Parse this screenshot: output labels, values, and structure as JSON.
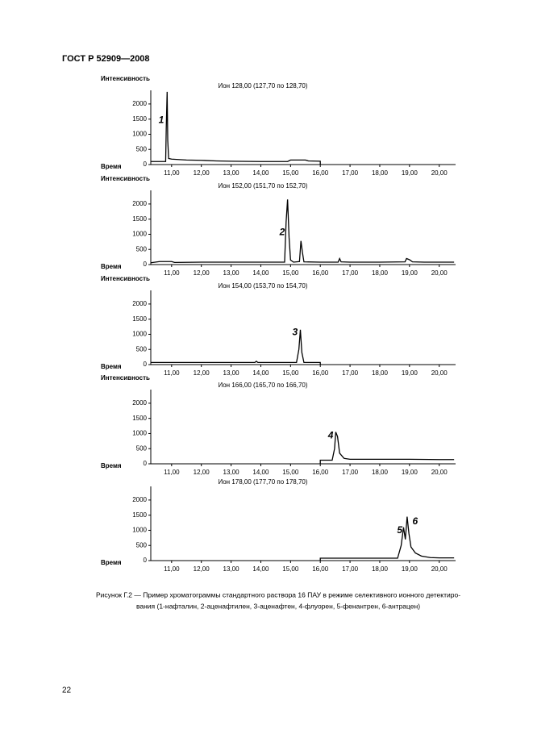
{
  "header": "ГОСТ Р 52909—2008",
  "chart_data": [
    {
      "type": "line",
      "title": "Ион 128,00 (127,70 по 128,70)",
      "y_label": "Интенсивность",
      "x_label": "Время",
      "xlim": [
        10.3,
        20.55
      ],
      "ylim": [
        0,
        2450
      ],
      "xticks": [
        {
          "value": 11,
          "label": "11,00"
        },
        {
          "value": 12,
          "label": "12,00"
        },
        {
          "value": 13,
          "label": "13,00"
        },
        {
          "value": 14,
          "label": "14,00"
        },
        {
          "value": 15,
          "label": "15,00"
        },
        {
          "value": 16,
          "label": "16,00"
        },
        {
          "value": 17,
          "label": "17,00"
        },
        {
          "value": 18,
          "label": "18,00"
        },
        {
          "value": 19,
          "label": "19,00"
        },
        {
          "value": 20,
          "label": "20,00"
        }
      ],
      "yticks": [
        0,
        500,
        1000,
        1500,
        2000
      ],
      "color": "#000000",
      "x": [
        10.3,
        10.8,
        10.82,
        10.85,
        10.87,
        10.9,
        11.0,
        11.5,
        12.0,
        12.5,
        13.0,
        14.0,
        14.9,
        15.0,
        15.5,
        15.6,
        16.0,
        16.0
      ],
      "values": [
        100,
        100,
        1200,
        2400,
        800,
        200,
        180,
        150,
        140,
        120,
        110,
        100,
        100,
        150,
        150,
        120,
        110,
        0
      ],
      "annotations": [
        {
          "text": "1",
          "x": 10.65,
          "y": 1450
        }
      ]
    },
    {
      "type": "line",
      "title": "Ион 152,00 (151,70 по 152,70)",
      "y_label": "Интенсивность",
      "x_label": "Время",
      "xlim": [
        10.3,
        20.55
      ],
      "ylim": [
        0,
        2450
      ],
      "xticks": [
        {
          "value": 11,
          "label": "11,00"
        },
        {
          "value": 12,
          "label": "12,00"
        },
        {
          "value": 13,
          "label": "13,00"
        },
        {
          "value": 14,
          "label": "14,00"
        },
        {
          "value": 15,
          "label": "15,00"
        },
        {
          "value": 16,
          "label": "16,00"
        },
        {
          "value": 17,
          "label": "17,00"
        },
        {
          "value": 18,
          "label": "18,00"
        },
        {
          "value": 19,
          "label": "19,00"
        },
        {
          "value": 20,
          "label": "20,00"
        }
      ],
      "yticks": [
        0,
        500,
        1000,
        1500,
        2000
      ],
      "color": "#000000",
      "x": [
        10.3,
        10.6,
        11.0,
        11.1,
        12,
        13,
        14,
        14.8,
        14.85,
        14.9,
        14.95,
        15.0,
        15.1,
        15.3,
        15.35,
        15.4,
        15.45,
        16,
        16.6,
        16.65,
        16.7,
        17,
        18,
        18.85,
        18.9,
        19.0,
        19.1,
        19.5,
        20.5
      ],
      "values": [
        60,
        100,
        100,
        70,
        80,
        80,
        80,
        80,
        1400,
        2150,
        900,
        150,
        80,
        100,
        780,
        400,
        90,
        80,
        80,
        200,
        90,
        80,
        80,
        90,
        200,
        160,
        90,
        80,
        80
      ],
      "annotations": [
        {
          "text": "2",
          "x": 14.72,
          "y": 1050
        }
      ]
    },
    {
      "type": "line",
      "title": "Ион 154,00 (153,70 по 154,70)",
      "y_label": "Интенсивность",
      "x_label": "Время",
      "xlim": [
        10.3,
        20.55
      ],
      "ylim": [
        0,
        2450
      ],
      "xticks": [
        {
          "value": 11,
          "label": "11,00"
        },
        {
          "value": 12,
          "label": "12,00"
        },
        {
          "value": 13,
          "label": "13,00"
        },
        {
          "value": 14,
          "label": "14,00"
        },
        {
          "value": 15,
          "label": "15,00"
        },
        {
          "value": 16,
          "label": "16,00"
        },
        {
          "value": 17,
          "label": "17,00"
        },
        {
          "value": 18,
          "label": "18,00"
        },
        {
          "value": 19,
          "label": "19,00"
        },
        {
          "value": 20,
          "label": "20,00"
        }
      ],
      "yticks": [
        0,
        500,
        1000,
        1500,
        2000
      ],
      "color": "#000000",
      "x": [
        10.3,
        13.8,
        13.85,
        13.9,
        15.2,
        15.28,
        15.33,
        15.38,
        15.45,
        16.0,
        16.0
      ],
      "values": [
        70,
        70,
        110,
        70,
        70,
        500,
        1150,
        400,
        70,
        70,
        0
      ],
      "annotations": [
        {
          "text": "3",
          "x": 15.15,
          "y": 1050
        }
      ]
    },
    {
      "type": "line",
      "title": "Ион 166,00 (165,70 по 166,70)",
      "y_label": "Интенсивность",
      "x_label": "Время",
      "xlim": [
        10.3,
        20.55
      ],
      "ylim": [
        0,
        2450
      ],
      "xticks": [
        {
          "value": 11,
          "label": "11,00"
        },
        {
          "value": 12,
          "label": "12,00"
        },
        {
          "value": 13,
          "label": "13,00"
        },
        {
          "value": 14,
          "label": "14,00"
        },
        {
          "value": 15,
          "label": "15,00"
        },
        {
          "value": 16,
          "label": "16,00"
        },
        {
          "value": 17,
          "label": "17,00"
        },
        {
          "value": 18,
          "label": "18,00"
        },
        {
          "value": 19,
          "label": "19,00"
        },
        {
          "value": 20,
          "label": "20,00"
        }
      ],
      "yticks": [
        0,
        500,
        1000,
        1500,
        2000
      ],
      "color": "#000000",
      "x": [
        16.0,
        16.0,
        16.4,
        16.48,
        16.52,
        16.58,
        16.65,
        16.8,
        17,
        18,
        19,
        20,
        20.5
      ],
      "values": [
        0,
        120,
        120,
        500,
        1050,
        900,
        350,
        180,
        150,
        150,
        150,
        140,
        140
      ],
      "annotations": [
        {
          "text": "4",
          "x": 16.35,
          "y": 920
        }
      ]
    },
    {
      "type": "line",
      "title": "Ион 178,00 (177,70 по 178,70)",
      "x_label": "Время",
      "xlim": [
        10.3,
        20.55
      ],
      "ylim": [
        0,
        2450
      ],
      "xticks": [
        {
          "value": 11,
          "label": "11,00"
        },
        {
          "value": 12,
          "label": "12,00"
        },
        {
          "value": 13,
          "label": "13,00"
        },
        {
          "value": 14,
          "label": "14,00"
        },
        {
          "value": 15,
          "label": "15,00"
        },
        {
          "value": 16,
          "label": "16,00"
        },
        {
          "value": 17,
          "label": "17,00"
        },
        {
          "value": 18,
          "label": "18,00"
        },
        {
          "value": 19,
          "label": "19,00"
        },
        {
          "value": 20,
          "label": "20,00"
        }
      ],
      "yticks": [
        0,
        500,
        1000,
        1500,
        2000
      ],
      "color": "#000000",
      "x": [
        16.0,
        16.0,
        18.6,
        18.72,
        18.8,
        18.86,
        18.92,
        18.98,
        19.05,
        19.2,
        19.4,
        19.7,
        20.0,
        20.5
      ],
      "values": [
        0,
        80,
        80,
        500,
        1100,
        700,
        1450,
        900,
        450,
        250,
        150,
        100,
        90,
        90
      ],
      "annotations": [
        {
          "text": "5",
          "x": 18.67,
          "y": 990
        },
        {
          "text": "6",
          "x": 19.19,
          "y": 1280
        }
      ]
    }
  ],
  "caption": [
    "Рисунок Г.2 — Пример хроматограммы стандартного раствора 16 ПАУ в режиме селективного ионного детектиро-",
    "вания (1-нафталин, 2-аценафтилен, 3-аценафтен, 4-флуорен, 5-фенантрен, 6-антрацен)"
  ],
  "page_number": "22"
}
